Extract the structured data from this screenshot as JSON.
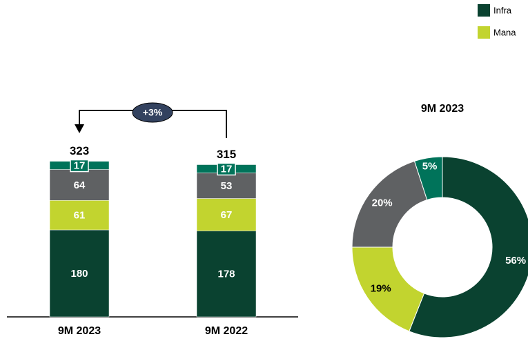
{
  "chart_data": [
    {
      "type": "stacked_bar",
      "categories": [
        "9M 2023",
        "9M 2022"
      ],
      "series": [
        {
          "name": "Infra",
          "color": "#0a4230",
          "values": [
            180,
            178
          ]
        },
        {
          "name": "Mana",
          "color": "#c2d42f",
          "values": [
            61,
            67
          ]
        },
        {
          "name": null,
          "color": "#5f6163",
          "values": [
            64,
            53
          ]
        },
        {
          "name": null,
          "color": "#00735a",
          "values": [
            17,
            17
          ]
        }
      ],
      "totals": [
        323,
        315
      ],
      "annotation": "+3%",
      "ylim": [
        0,
        400
      ],
      "legend": "top-right"
    },
    {
      "type": "donut",
      "title": "9M 2023",
      "values": [
        56,
        19,
        20,
        5
      ],
      "value_labels": [
        "56%",
        "19%",
        "20%",
        "5%"
      ],
      "colors": [
        "#0a4230",
        "#c2d42f",
        "#5f6163",
        "#00735a"
      ]
    }
  ]
}
